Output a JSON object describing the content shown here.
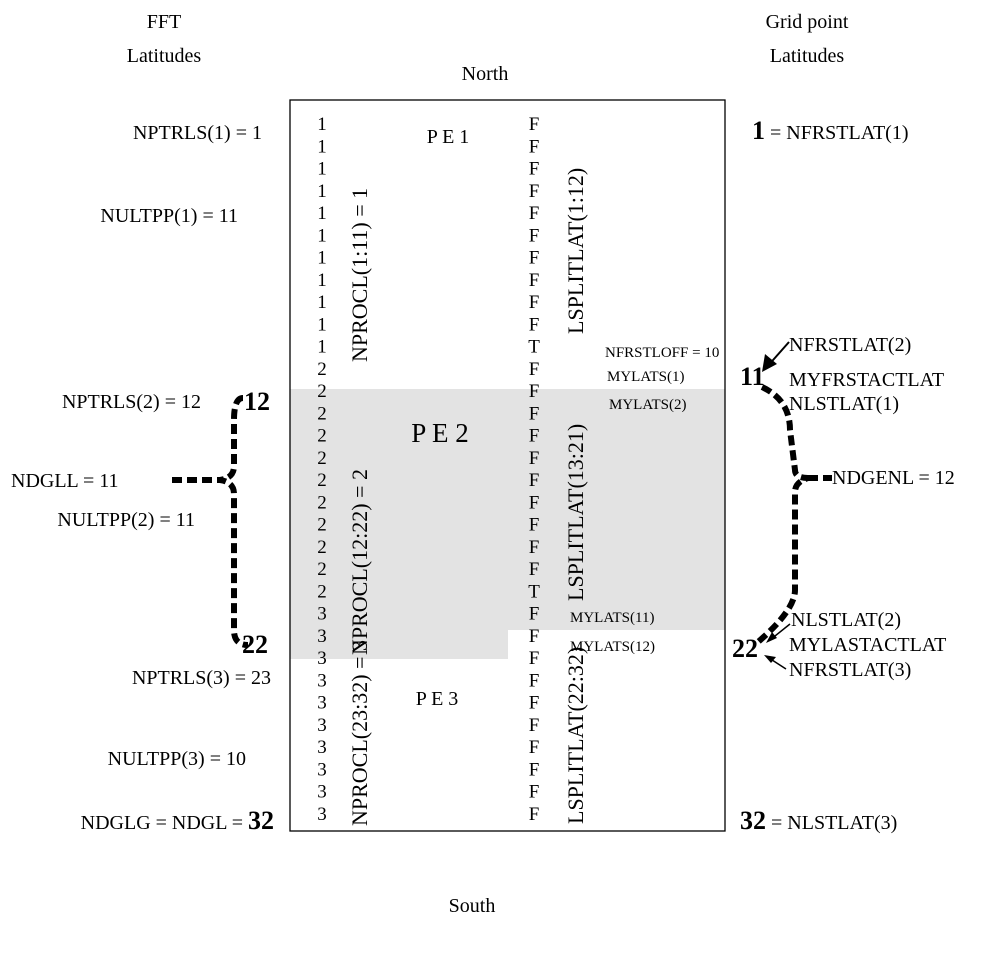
{
  "headers": {
    "fft_line1": "FFT",
    "fft_line2": "Latitudes",
    "grid_line1": "Grid point",
    "grid_line2": "Latitudes",
    "north": "North",
    "south": "South"
  },
  "pe_labels": [
    "P E 1",
    "P E 2",
    "P E 3"
  ],
  "nprocl_values": [
    "1",
    "1",
    "1",
    "1",
    "1",
    "1",
    "1",
    "1",
    "1",
    "1",
    "1",
    "2",
    "2",
    "2",
    "2",
    "2",
    "2",
    "2",
    "2",
    "2",
    "2",
    "2",
    "3",
    "3",
    "3",
    "3",
    "3",
    "3",
    "3",
    "3",
    "3",
    "3"
  ],
  "lsplitlat_values": [
    "F",
    "F",
    "F",
    "F",
    "F",
    "F",
    "F",
    "F",
    "F",
    "F",
    "T",
    "F",
    "F",
    "F",
    "F",
    "F",
    "F",
    "F",
    "F",
    "F",
    "F",
    "T",
    "F",
    "F",
    "F",
    "F",
    "F",
    "F",
    "F",
    "F",
    "F",
    "F"
  ],
  "vertical_labels": {
    "nprocl_1": "NPROCL(1:11) = 1",
    "nprocl_2": "NPROCL(12:22) = 2",
    "nprocl_3": "NPROCL(23:32) = 3",
    "lsplit_1": "LSPLITLAT(1:12)",
    "lsplit_2": "LSPLITLAT(13:21)",
    "lsplit_3": "LSPLITLAT(22:32)"
  },
  "left_labels": {
    "nptrls1": "NPTRLS(1) = 1",
    "nultpp1": "NULTPP(1) = 11",
    "nptrls2": "NPTRLS(2) = 12",
    "ndgll": "NDGLL = 11",
    "nultpp2": "NULTPP(2) = 11",
    "nptrls3": "NPTRLS(3) = 23",
    "nultpp3": "NULTPP(3) = 10",
    "ndglg_prefix": "NDGLG = NDGL = ",
    "ndglg_value": "32",
    "brace_top": "12",
    "brace_bottom": "22"
  },
  "inner_labels": {
    "nfrstloff": "NFRSTLOFF = 10",
    "mylats1": "MYLATS(1)",
    "mylats2": "MYLATS(2)",
    "mylats11": "MYLATS(11)",
    "mylats12": "MYLATS(12)"
  },
  "right_labels": {
    "top_value": "1",
    "top_suffix": " = NFRSTLAT(1)",
    "nfrstlat2": "NFRSTLAT(2)",
    "val11": "11",
    "myfrstactlat": "MYFRSTACTLAT",
    "nlstlat1": "NLSTLAT(1)",
    "ndgenl": "NDGENL = 12",
    "nlstlat2": "NLSTLAT(2)",
    "val22": "22",
    "mylastactlat": "MYLASTACTLAT",
    "nfrstlat3": "NFRSTLAT(3)",
    "bottom_value": "32",
    "bottom_suffix": " = NLSTLAT(3)"
  },
  "colors": {
    "shade": "#e3e3e3",
    "ink": "#000000"
  }
}
